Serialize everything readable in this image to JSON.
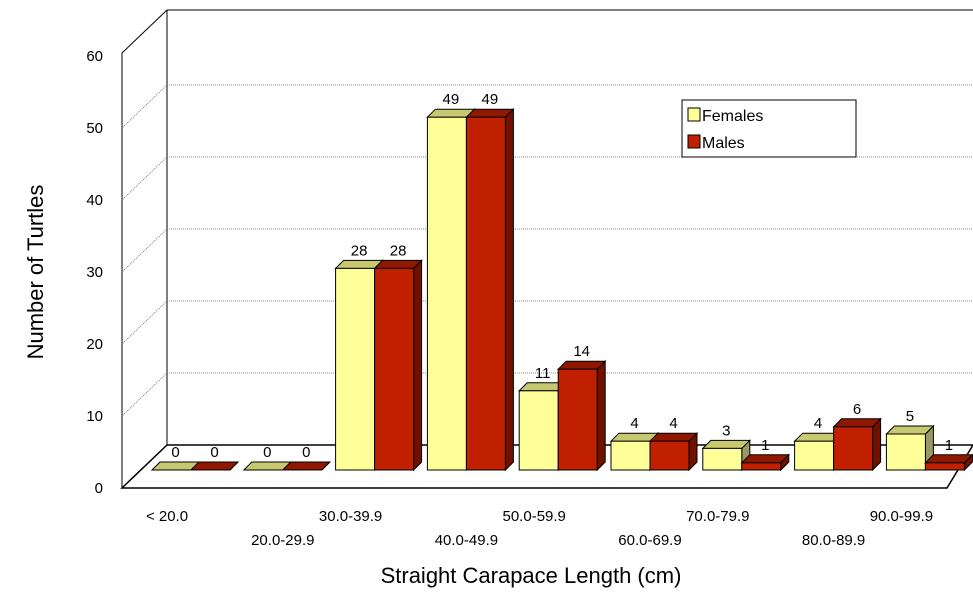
{
  "chart_data": {
    "type": "bar",
    "title": "",
    "xlabel": "Straight Carapace Length (cm)",
    "ylabel": "Number of Turtles",
    "categories": [
      "< 20.0",
      "20.0-29.9",
      "30.0-39.9",
      "40.0-49.9",
      "50.0-59.9",
      "60.0-69.9",
      "70.0-79.9",
      "80.0-89.9",
      "90.0-99.9"
    ],
    "series": [
      {
        "name": "Females",
        "values": [
          0,
          0,
          28,
          49,
          11,
          4,
          3,
          4,
          5
        ]
      },
      {
        "name": "Males",
        "values": [
          0,
          0,
          28,
          49,
          14,
          4,
          1,
          6,
          1
        ]
      }
    ],
    "ylim": [
      0,
      60
    ],
    "yticks": [
      0,
      10,
      20,
      30,
      40,
      50,
      60
    ],
    "grid": true,
    "legend_position": "top-right",
    "three_d": true
  },
  "colors": {
    "Females": {
      "front": "#ffff99",
      "top": "#c8c870",
      "side": "#999966"
    },
    "Males": {
      "front": "#c02000",
      "top": "#901800",
      "side": "#701000"
    }
  }
}
